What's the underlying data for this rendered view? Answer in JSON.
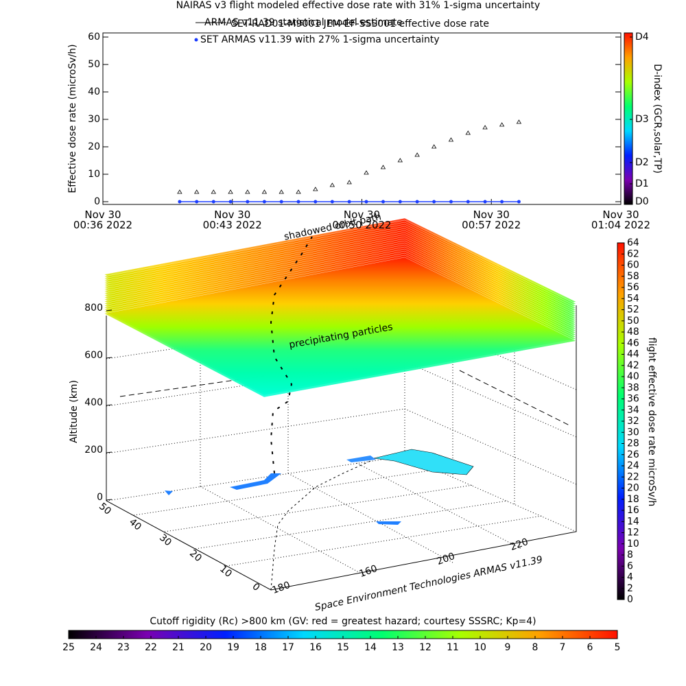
{
  "chart_data": [
    {
      "type": "scatter",
      "title": "SET-RAD01-M9001 JEM-EF-SSS001 effective dose rate",
      "legend_note": "ARMAS v11.39 statistical model estimate",
      "ylabel": "Effective dose rate (microSv/h)",
      "x": [
        40.15,
        41.07,
        41.98,
        42.9,
        43.82,
        44.73,
        45.65,
        46.57,
        47.49,
        48.4,
        49.32,
        50.24,
        51.15,
        52.07,
        52.99,
        53.9,
        54.82,
        55.74,
        56.66,
        57.57,
        58.49
      ],
      "xlim": [
        36,
        64
      ],
      "xticks": [
        {
          "value": 36,
          "label": "Nov 30\n00:36 2022"
        },
        {
          "value": 43,
          "label": "Nov 30\n00:43 2022"
        },
        {
          "value": 50,
          "label": "Nov 30\n00:50 2022"
        },
        {
          "value": 57,
          "label": "Nov 30\n00:57 2022"
        },
        {
          "value": 64,
          "label": "Nov 30\n01:04 2022"
        }
      ],
      "ylim": [
        -1,
        61.5
      ],
      "yticks": [
        0,
        10,
        20,
        30,
        40,
        50,
        60
      ],
      "series": [
        {
          "name": "NAIRAS v3 flight modeled effective dose rate with 31% 1-sigma uncertainty",
          "color": "#000000",
          "marker": "triangle",
          "values": [
            3.5,
            3.5,
            3.5,
            3.5,
            3.5,
            3.5,
            3.5,
            3.5,
            4.5,
            6,
            7,
            10.5,
            12.5,
            15,
            17,
            20,
            22.5,
            25,
            27,
            28,
            29
          ]
        },
        {
          "name": "SET ARMAS v11.39 with 27% 1-sigma uncertainty",
          "color": "#1a3cff",
          "marker": "circle",
          "values": [
            0,
            0,
            0,
            0,
            0,
            0,
            0,
            0,
            0,
            0,
            0,
            0,
            0,
            0,
            0,
            0,
            0,
            0,
            0,
            0,
            0
          ]
        }
      ],
      "colorbar": {
        "label": "D-index (GCR,solar,TP)",
        "ticks": [
          {
            "value": 0,
            "label": "D0"
          },
          {
            "value": 6.5,
            "label": "D1"
          },
          {
            "value": 14.25,
            "label": "D2"
          },
          {
            "value": 30,
            "label": "D3"
          },
          {
            "value": 60,
            "label": "D4"
          }
        ],
        "colormap": [
          "#000000",
          "#7a00b0",
          "#0020ff",
          "#00d8ff",
          "#00ff70",
          "#a8ff00",
          "#ffa000",
          "#ff1000"
        ]
      }
    },
    {
      "type": "surface3d",
      "zlabel": "Altitude (km)",
      "zlim": [
        0,
        800
      ],
      "zticks": [
        0,
        200,
        400,
        600,
        800
      ],
      "lat_ticks": [
        0,
        10,
        20,
        30,
        40,
        50
      ],
      "lon_ticks": [
        "180",
        "160",
        "200",
        "220"
      ],
      "annotations": [
        "shadowed orbit path",
        "precipitating particles"
      ],
      "credit": "Space Environment Technologies ARMAS v11.39",
      "colorbar": {
        "label": "flight effective dose rate microSv/h",
        "lim": [
          0,
          64
        ],
        "ticks": [
          0,
          2,
          4,
          6,
          8,
          10,
          12,
          14,
          16,
          18,
          20,
          22,
          24,
          26,
          28,
          30,
          32,
          34,
          36,
          38,
          40,
          42,
          44,
          46,
          48,
          50,
          52,
          54,
          56,
          58,
          60,
          62,
          64
        ],
        "colormap": [
          "#000000",
          "#7a00b0",
          "#0020ff",
          "#00d8ff",
          "#00ff70",
          "#a8ff00",
          "#ffa000",
          "#ff1000"
        ]
      }
    },
    {
      "type": "colorbar",
      "title": "Cutoff rigidity (Rc) >800 km (GV: red = greatest hazard; courtesy SSSRC; Kp=4)",
      "lim": [
        25,
        5
      ],
      "ticks": [
        25,
        24,
        23,
        22,
        21,
        20,
        19,
        18,
        17,
        16,
        15,
        14,
        13,
        12,
        11,
        10,
        9,
        8,
        7,
        6,
        5
      ],
      "colormap": [
        "#000000",
        "#7a00b0",
        "#0020ff",
        "#00d8ff",
        "#00ff70",
        "#a8ff00",
        "#ffa000",
        "#ff1000"
      ]
    }
  ]
}
